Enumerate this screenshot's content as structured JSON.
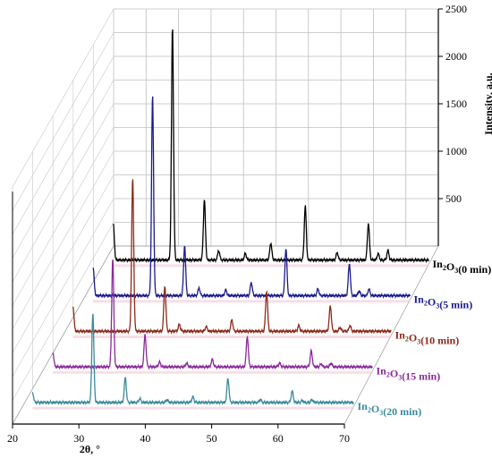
{
  "chart_data": {
    "type": "line",
    "style": "3d-waterfall",
    "xlabel": "2θ, °",
    "ylabel": "Intensity, a.u.",
    "xlim": [
      20,
      70
    ],
    "ylim": [
      0,
      2500
    ],
    "x_ticks": [
      20,
      30,
      40,
      50,
      60,
      70
    ],
    "y_ticks": [
      500,
      1000,
      1500,
      2000,
      2500
    ],
    "grid": true,
    "series": [
      {
        "name": "In2O3(0 min)",
        "label_main": "In",
        "label_sub1": "2",
        "label_mid": "O",
        "label_sub2": "3",
        "label_tail": "(0 min)",
        "color": "#000000",
        "peaks": [
          [
            21.5,
            420
          ],
          [
            30.6,
            2500
          ],
          [
            35.5,
            680
          ],
          [
            37.7,
            140
          ],
          [
            41.8,
            110
          ],
          [
            45.7,
            220
          ],
          [
            51.0,
            610
          ],
          [
            55.9,
            120
          ],
          [
            60.7,
            430
          ],
          [
            62.2,
            110
          ],
          [
            63.7,
            140
          ]
        ]
      },
      {
        "name": "In2O3(5 min)",
        "label_main": "In",
        "label_sub1": "2",
        "label_mid": "O",
        "label_sub2": "3",
        "label_tail": "(5 min)",
        "color": "#1a1a8c",
        "peaks": [
          [
            21.5,
            340
          ],
          [
            30.6,
            2150
          ],
          [
            35.5,
            570
          ],
          [
            37.7,
            120
          ],
          [
            41.8,
            100
          ],
          [
            45.7,
            180
          ],
          [
            51.0,
            540
          ],
          [
            55.9,
            110
          ],
          [
            60.7,
            380
          ],
          [
            62.2,
            90
          ],
          [
            63.7,
            110
          ]
        ]
      },
      {
        "name": "In2O3(10 min)",
        "label_main": "In",
        "label_sub1": "2",
        "label_mid": "O",
        "label_sub2": "3",
        "label_tail": "(10 min)",
        "color": "#8b2a1a",
        "peaks": [
          [
            21.5,
            300
          ],
          [
            30.6,
            1650
          ],
          [
            35.5,
            520
          ],
          [
            37.7,
            110
          ],
          [
            41.8,
            90
          ],
          [
            45.7,
            160
          ],
          [
            51.0,
            460
          ],
          [
            55.9,
            100
          ],
          [
            60.7,
            310
          ],
          [
            62.2,
            80
          ],
          [
            63.7,
            100
          ]
        ]
      },
      {
        "name": "In2O3(15 min)",
        "label_main": "In",
        "label_sub1": "2",
        "label_mid": "O",
        "label_sub2": "3",
        "label_tail": "(15 min)",
        "color": "#8a2a9a",
        "peaks": [
          [
            21.5,
            200
          ],
          [
            30.6,
            1180
          ],
          [
            35.5,
            380
          ],
          [
            37.7,
            90
          ],
          [
            41.8,
            80
          ],
          [
            45.7,
            120
          ],
          [
            51.0,
            360
          ],
          [
            55.9,
            80
          ],
          [
            60.7,
            210
          ],
          [
            62.2,
            70
          ],
          [
            63.7,
            80
          ]
        ]
      },
      {
        "name": "In2O3(20 min)",
        "label_main": "In",
        "label_sub1": "2",
        "label_mid": "O",
        "label_sub2": "3",
        "label_tail": "(20 min)",
        "color": "#3a8a9a",
        "peaks": [
          [
            21.5,
            140
          ],
          [
            30.6,
            980
          ],
          [
            35.5,
            300
          ],
          [
            37.7,
            80
          ],
          [
            41.8,
            70
          ],
          [
            45.7,
            100
          ],
          [
            51.0,
            290
          ],
          [
            55.9,
            70
          ],
          [
            60.7,
            160
          ],
          [
            62.2,
            60
          ],
          [
            63.7,
            70
          ]
        ]
      }
    ]
  }
}
